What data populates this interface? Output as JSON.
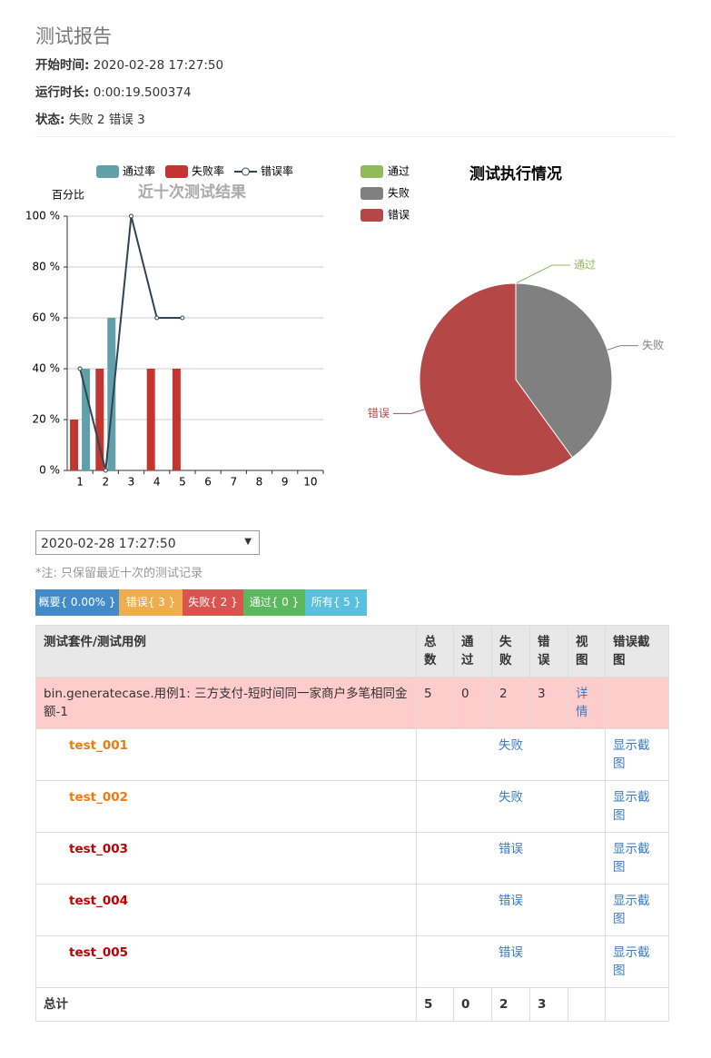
{
  "header": {
    "title": "测试报告",
    "fields": [
      {
        "label": "开始时间:",
        "value": "2020-02-28 17:27:50"
      },
      {
        "label": "运行时长:",
        "value": "0:00:19.500374"
      },
      {
        "label": "状态:",
        "value": "失败 2 错误 3"
      }
    ]
  },
  "chart_data": [
    {
      "type": "bar",
      "title": "近十次测试结果",
      "y_label": "百分比",
      "categories": [
        "1",
        "2",
        "3",
        "4",
        "5",
        "6",
        "7",
        "8",
        "9",
        "10"
      ],
      "series": [
        {
          "name": "通过率",
          "type": "bar",
          "color": "#61a0a8",
          "values": [
            40,
            60,
            0,
            0,
            0,
            null,
            null,
            null,
            null,
            null
          ]
        },
        {
          "name": "失败率",
          "type": "bar",
          "color": "#c23531",
          "values": [
            20,
            40,
            0,
            40,
            40,
            null,
            null,
            null,
            null,
            null
          ]
        },
        {
          "name": "错误率",
          "type": "line",
          "color": "#2f4554",
          "values": [
            40,
            0,
            100,
            60,
            60,
            null,
            null,
            null,
            null,
            null
          ]
        }
      ],
      "ylim": [
        0,
        100
      ],
      "yticks": [
        {
          "value": 0,
          "label": "0 %"
        },
        {
          "value": 20,
          "label": "20 %"
        },
        {
          "value": 40,
          "label": "40 %"
        },
        {
          "value": 60,
          "label": "60 %"
        },
        {
          "value": 80,
          "label": "80 %"
        },
        {
          "value": 100,
          "label": "100 %"
        }
      ],
      "grid": true,
      "legend": "top"
    },
    {
      "type": "pie",
      "title": "测试执行情况",
      "categories": [
        "通过",
        "失败",
        "错误"
      ],
      "values": [
        0,
        2,
        3
      ],
      "colors": [
        "#91bb5a",
        "#808080",
        "#b54747"
      ],
      "legend": "left"
    }
  ],
  "select": {
    "value": "2020-02-28 17:27:50",
    "note": "*注: 只保留最近十次的测试记录"
  },
  "buttons": [
    "概要{ 0.00% }",
    "错误{ 3 }",
    "失败{ 2 }",
    "通过{ 0 }",
    "所有{ 5 }"
  ],
  "table": {
    "headers": [
      "测试套件/测试用例",
      "总数",
      "通过",
      "失败",
      "错误",
      "视图",
      "错误截图"
    ],
    "suite": {
      "name": "bin.generatecase.用例1: 三方支付-短时间同一家商户多笔相同金额-1",
      "total": 5,
      "pass": 0,
      "fail": 2,
      "error": 3,
      "view": "详情"
    },
    "cases": [
      {
        "name": "test_001",
        "color": "#f07a10",
        "status": "失败",
        "screenshot": "显示截图"
      },
      {
        "name": "test_002",
        "color": "#f07a10",
        "status": "失败",
        "screenshot": "显示截图"
      },
      {
        "name": "test_003",
        "color": "#c00000",
        "status": "错误",
        "screenshot": "显示截图"
      },
      {
        "name": "test_004",
        "color": "#c00000",
        "status": "错误",
        "screenshot": "显示截图"
      },
      {
        "name": "test_005",
        "color": "#c00000",
        "status": "错误",
        "screenshot": "显示截图"
      }
    ],
    "total": {
      "label": "总计",
      "total": 5,
      "pass": 0,
      "fail": 2,
      "error": 3
    }
  }
}
